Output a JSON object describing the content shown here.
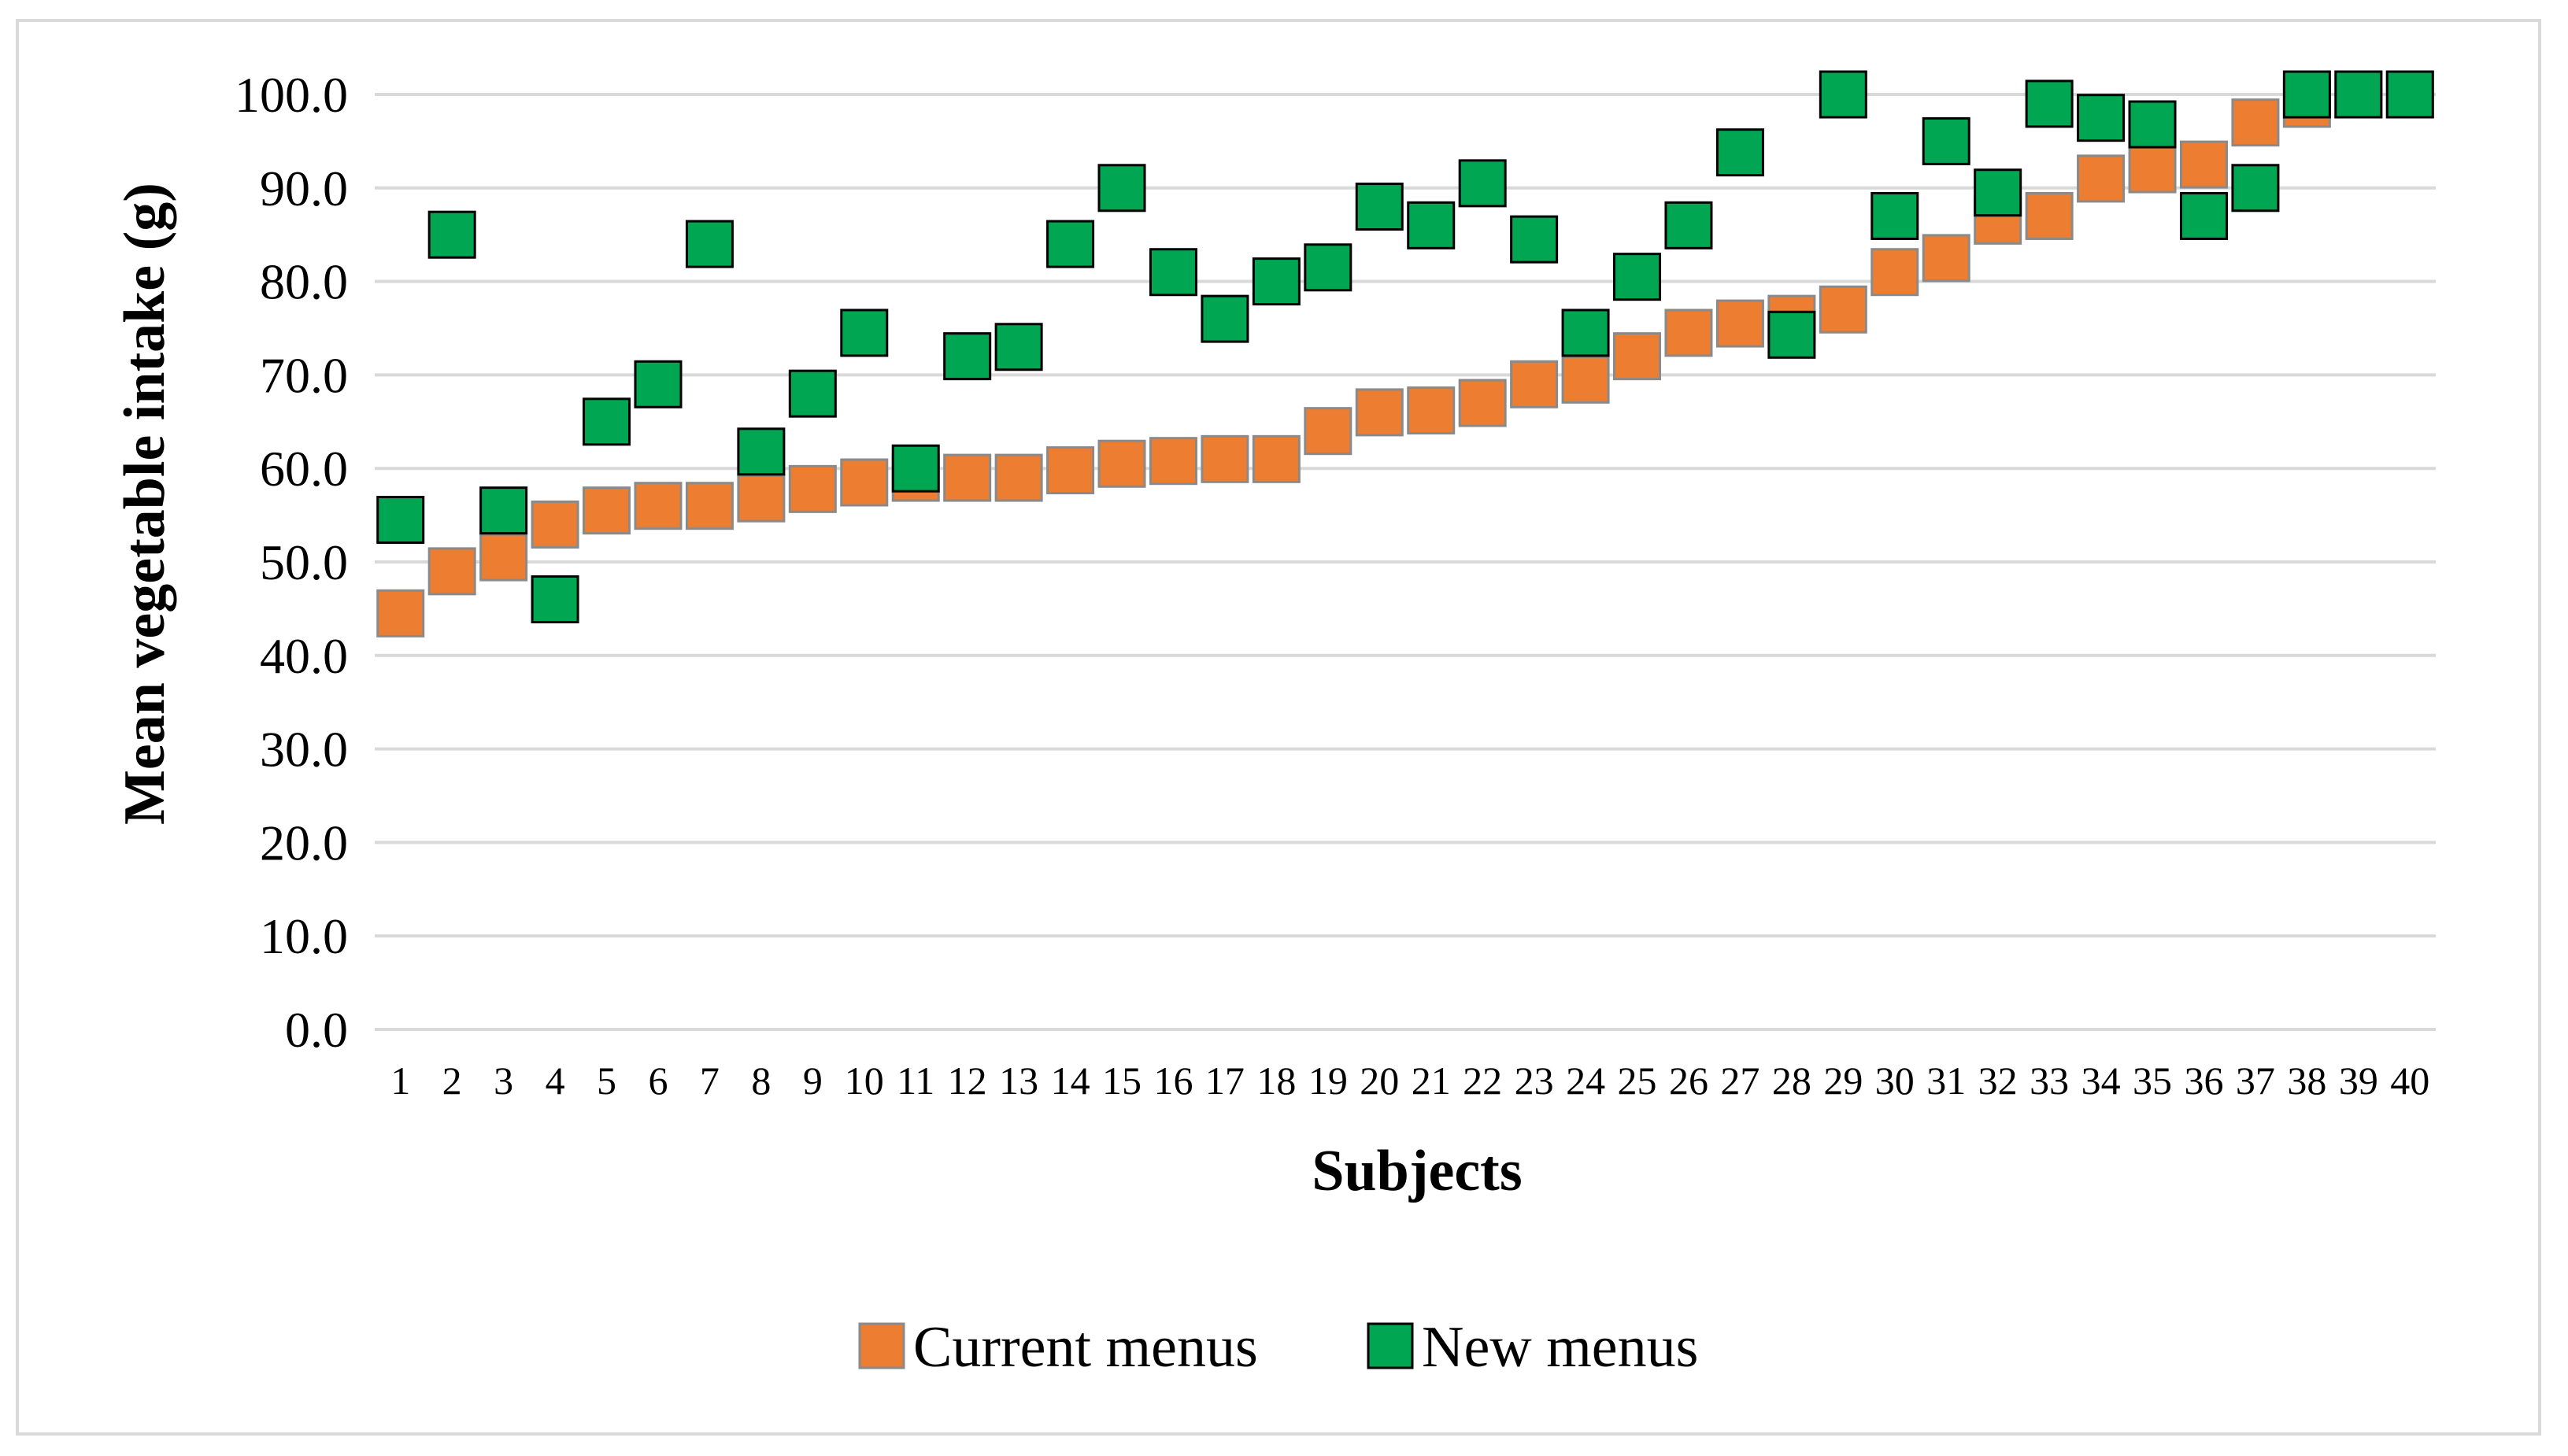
{
  "chart_data": {
    "type": "scatter",
    "title": "",
    "xlabel": "Subjects",
    "ylabel": "Mean vegetable intake (g)",
    "ylim": [
      0,
      100
    ],
    "yticks": [
      "0.0",
      "10.0",
      "20.0",
      "30.0",
      "40.0",
      "50.0",
      "60.0",
      "70.0",
      "80.0",
      "90.0",
      "100.0"
    ],
    "grid": true,
    "legend_position": "bottom",
    "categories": [
      "1",
      "2",
      "3",
      "4",
      "5",
      "6",
      "7",
      "8",
      "9",
      "10",
      "11",
      "12",
      "13",
      "14",
      "15",
      "16",
      "17",
      "18",
      "19",
      "20",
      "21",
      "22",
      "23",
      "24",
      "25",
      "26",
      "27",
      "28",
      "29",
      "30",
      "31",
      "32",
      "33",
      "34",
      "35",
      "36",
      "37",
      "38",
      "39",
      "40"
    ],
    "series": [
      {
        "name": "Current menus",
        "color": "#ed7d31",
        "marker": "square",
        "values": [
          44.5,
          49.0,
          50.5,
          54.0,
          55.5,
          56.0,
          56.0,
          56.8,
          57.8,
          58.5,
          59.0,
          59.0,
          59.0,
          59.8,
          60.5,
          60.8,
          61.0,
          61.0,
          64.0,
          66.0,
          66.2,
          67.0,
          69.0,
          69.5,
          72.0,
          74.5,
          75.5,
          76.0,
          77.0,
          81.0,
          82.5,
          86.5,
          87.0,
          91.0,
          92.0,
          92.5,
          97.0,
          99.0,
          100.0,
          100.0
        ]
      },
      {
        "name": "New menus",
        "color": "#00a651",
        "marker": "square",
        "values": [
          54.5,
          85.0,
          55.5,
          46.0,
          65.0,
          69.0,
          84.0,
          61.8,
          68.0,
          74.5,
          60.0,
          72.0,
          73.0,
          84.0,
          90.0,
          81.0,
          76.0,
          80.0,
          81.5,
          88.0,
          86.0,
          90.5,
          84.5,
          74.5,
          80.5,
          86.0,
          93.8,
          74.3,
          100.0,
          87.0,
          95.0,
          89.5,
          99.0,
          97.5,
          96.8,
          87.0,
          90.0,
          100.0,
          100.0,
          100.0
        ]
      }
    ]
  }
}
